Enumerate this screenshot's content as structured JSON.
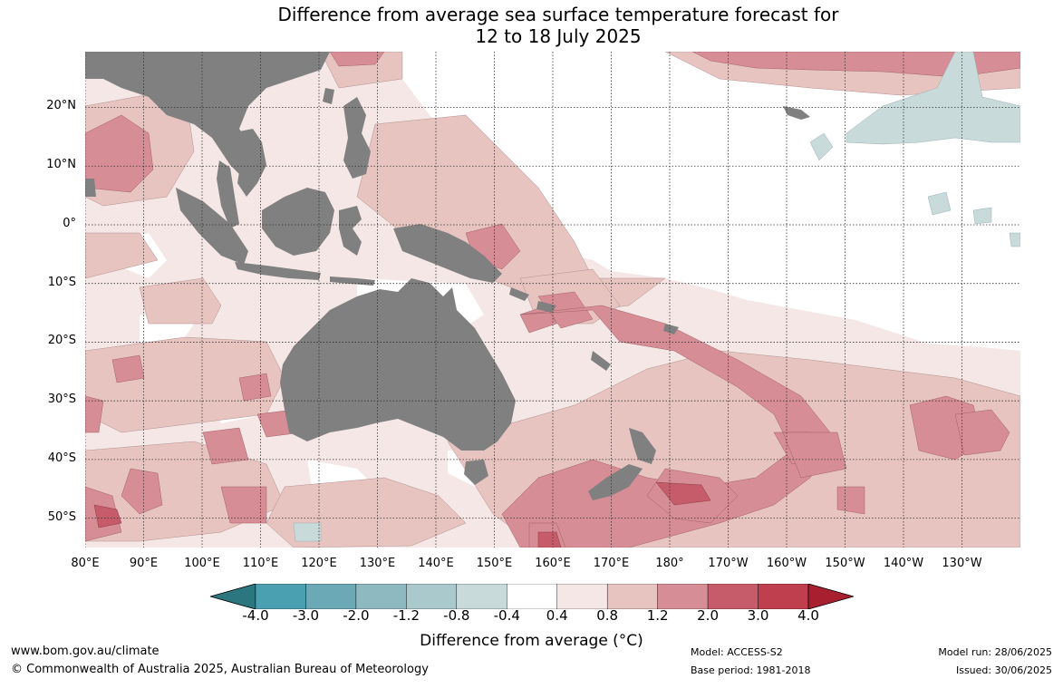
{
  "title": {
    "line1": "Difference from average sea surface temperature forecast for",
    "line2": "12 to 18 July 2025"
  },
  "latitude_labels": [
    "20°N",
    "10°N",
    "0°",
    "10°S",
    "20°S",
    "30°S",
    "40°S",
    "50°S"
  ],
  "latitude_values": [
    20,
    10,
    0,
    -10,
    -20,
    -30,
    -40,
    -50
  ],
  "longitude_labels": [
    "80°E",
    "90°E",
    "100°E",
    "110°E",
    "120°E",
    "130°E",
    "140°E",
    "150°E",
    "160°E",
    "170°E",
    "180°",
    "170°W",
    "160°W",
    "150°W",
    "140°W",
    "130°W"
  ],
  "longitude_values": [
    80,
    90,
    100,
    110,
    120,
    130,
    140,
    150,
    160,
    170,
    180,
    190,
    200,
    210,
    220,
    230
  ],
  "map_extent": {
    "lon": [
      80,
      240
    ],
    "lat": [
      -55,
      29.5
    ]
  },
  "colorbar": {
    "title": "Difference from average (°C)",
    "tick_labels": [
      "-4.0",
      "-3.0",
      "-2.0",
      "-1.2",
      "-0.8",
      "-0.4",
      "0.4",
      "0.8",
      "1.2",
      "2.0",
      "3.0",
      "4.0"
    ],
    "colors": [
      "#2c7680",
      "#4aa0b0",
      "#6ba9b7",
      "#8fb9c1",
      "#a9c9cc",
      "#c9dadb",
      "#ffffff",
      "#f4e7e6",
      "#e8c4c1",
      "#d78d95",
      "#c65c6a",
      "#bf3f4e",
      "#a8202f"
    ]
  },
  "colors": {
    "land": "#808080",
    "neutral": "#ffffff",
    "warm_light": "#f4e7e6",
    "warm_medium": "#e8c4c1",
    "warm_strong": "#d78d95",
    "warm_very_strong": "#c65c6a",
    "cool_light": "#c9dadb"
  },
  "footer": {
    "website": "www.bom.gov.au/climate",
    "copyright": "© Commonwealth of Australia 2025, Australian Bureau of Meteorology",
    "model": "Model: ACCESS-S2",
    "base_period": "Base period: 1981-2018",
    "model_run": "Model run: 28/06/2025",
    "issued": "Issued: 30/06/2025"
  }
}
